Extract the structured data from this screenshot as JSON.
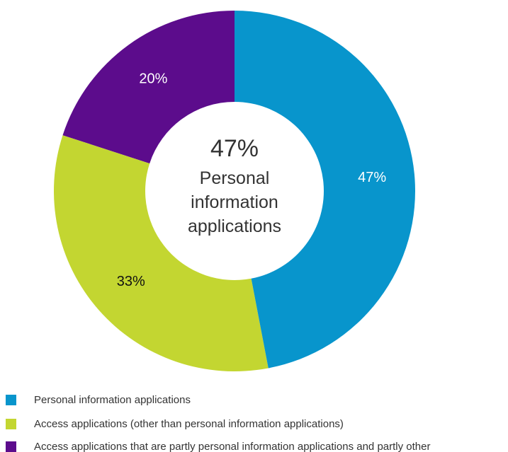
{
  "chart_data": {
    "type": "donut",
    "categories": [
      "Personal information applications",
      "Access applications (other than personal information applications)",
      "Access applications that are partly personal information applications and partly other"
    ],
    "values": [
      47,
      33,
      20
    ],
    "value_labels": [
      "47%",
      "33%",
      "20%"
    ],
    "colors": [
      "#0895cc",
      "#c3d631",
      "#5c0c8c"
    ],
    "label_colors": [
      "#ffffff",
      "#111111",
      "#ffffff"
    ]
  }
}
